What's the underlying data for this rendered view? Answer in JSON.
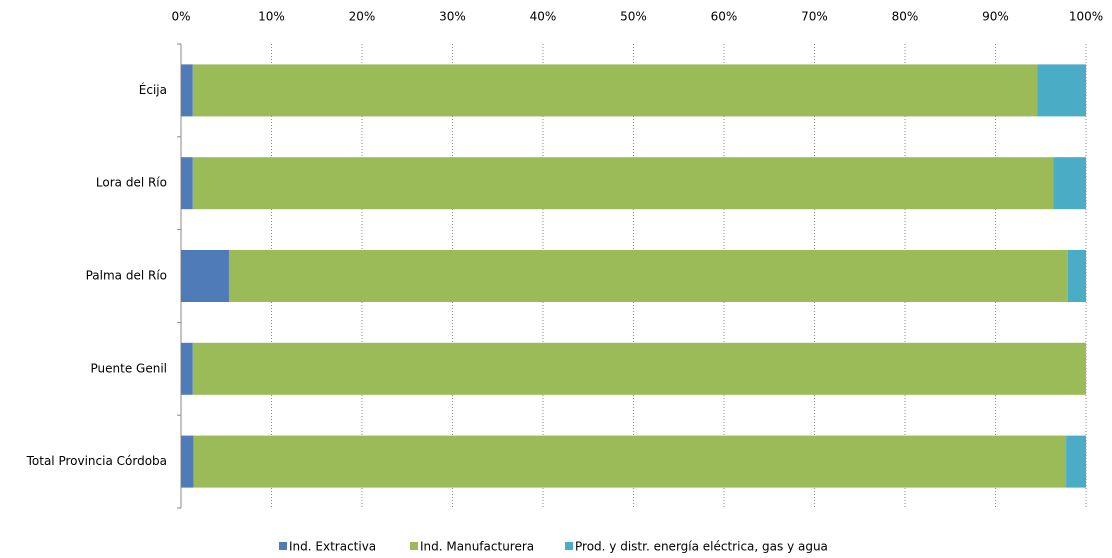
{
  "chart_data": {
    "type": "stacked_barh",
    "categories": [
      "Écija",
      "Lora del Río",
      "Palma del Río",
      "Puente Genil",
      "Total Provincia Córdoba"
    ],
    "series": [
      {
        "name": "Ind. Extractiva",
        "color": "#4f7bb8",
        "values": [
          1.3,
          1.3,
          5.3,
          1.3,
          1.4
        ]
      },
      {
        "name": "Ind. Manufacturera",
        "color": "#9bbb59",
        "values": [
          93.3,
          95.1,
          92.7,
          98.7,
          96.4
        ]
      },
      {
        "name": "Prod. y distr. energía eléctrica, gas y agua",
        "color": "#4bacc6",
        "values": [
          5.4,
          3.6,
          2.0,
          0,
          2.2
        ]
      }
    ],
    "xlim": [
      0,
      100
    ],
    "xticks": [
      {
        "value": 0,
        "label": "0%"
      },
      {
        "value": 10,
        "label": "10%"
      },
      {
        "value": 20,
        "label": "20%"
      },
      {
        "value": 30,
        "label": "30%"
      },
      {
        "value": 40,
        "label": "40%"
      },
      {
        "value": 50,
        "label": "50%"
      },
      {
        "value": 60,
        "label": "60%"
      },
      {
        "value": 70,
        "label": "70%"
      },
      {
        "value": 80,
        "label": "80%"
      },
      {
        "value": 90,
        "label": "90%"
      },
      {
        "value": 100,
        "label": "100%"
      }
    ],
    "grid": true,
    "legend": "bottom"
  }
}
